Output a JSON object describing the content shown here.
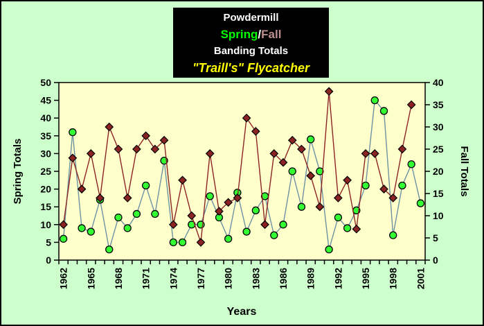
{
  "window": {
    "background_color": "#CCFFCC",
    "border_color": "#000000"
  },
  "title_box": {
    "line1": "Powdermill",
    "spring_label": "Spring",
    "separator": "/",
    "fall_label": "Fall",
    "line3": "Banding Totals",
    "line4": "\"Traill's\" Flycatcher",
    "background_color": "#000000",
    "line1_color": "#FFFFFF",
    "spring_color": "#00FF00",
    "separator_color": "#FFFFFF",
    "fall_color": "#BC8F8F",
    "line3_color": "#FFFFFF",
    "line4_color": "#FFFF00"
  },
  "chart_data": {
    "type": "line",
    "title": "Powdermill Spring/Fall Banding Totals — \"Traill's\" Flycatcher",
    "xlabel": "Years",
    "x": [
      1962,
      1963,
      1964,
      1965,
      1966,
      1967,
      1968,
      1969,
      1970,
      1971,
      1972,
      1973,
      1974,
      1975,
      1976,
      1977,
      1978,
      1979,
      1980,
      1981,
      1982,
      1983,
      1984,
      1985,
      1986,
      1987,
      1988,
      1989,
      1990,
      1991,
      1992,
      1993,
      1994,
      1995,
      1996,
      1997,
      1998,
      1999,
      2000,
      2001
    ],
    "x_tick_labels": [
      "1962",
      "1965",
      "1968",
      "1971",
      "1974",
      "1977",
      "1980",
      "1983",
      "1986",
      "1989",
      "1992",
      "1995",
      "1998",
      "2001"
    ],
    "left_axis": {
      "label": "Spring Totals",
      "min": 0,
      "max": 50,
      "step": 5
    },
    "right_axis": {
      "label": "Fall Totals",
      "min": 0,
      "max": 40,
      "step": 5
    },
    "grid": false,
    "plot_background": "#FFFFCC",
    "series": [
      {
        "name": "Spring",
        "axis": "left",
        "marker": "circle",
        "marker_color": "#33FF33",
        "line_color": "#6B93A3",
        "values": [
          6,
          36,
          9,
          8,
          17,
          3,
          12,
          9,
          13,
          21,
          13,
          28,
          5,
          5,
          10,
          10,
          18,
          12,
          6,
          19,
          8,
          14,
          18,
          7,
          10,
          25,
          15,
          34,
          25,
          3,
          12,
          9,
          14,
          21,
          45,
          42,
          7,
          21,
          27,
          16
        ]
      },
      {
        "name": "Fall",
        "axis": "right",
        "marker": "diamond",
        "marker_color": "#8B2323",
        "line_color": "#8B2323",
        "values": [
          8,
          23,
          16,
          24,
          14,
          30,
          25,
          14,
          25,
          28,
          25,
          27,
          8,
          18,
          10,
          4,
          24,
          11,
          13,
          14,
          32,
          29,
          8,
          24,
          22,
          27,
          25,
          19,
          12,
          38,
          14,
          18,
          7,
          24,
          24,
          16,
          14,
          25,
          35,
          null
        ]
      }
    ]
  }
}
